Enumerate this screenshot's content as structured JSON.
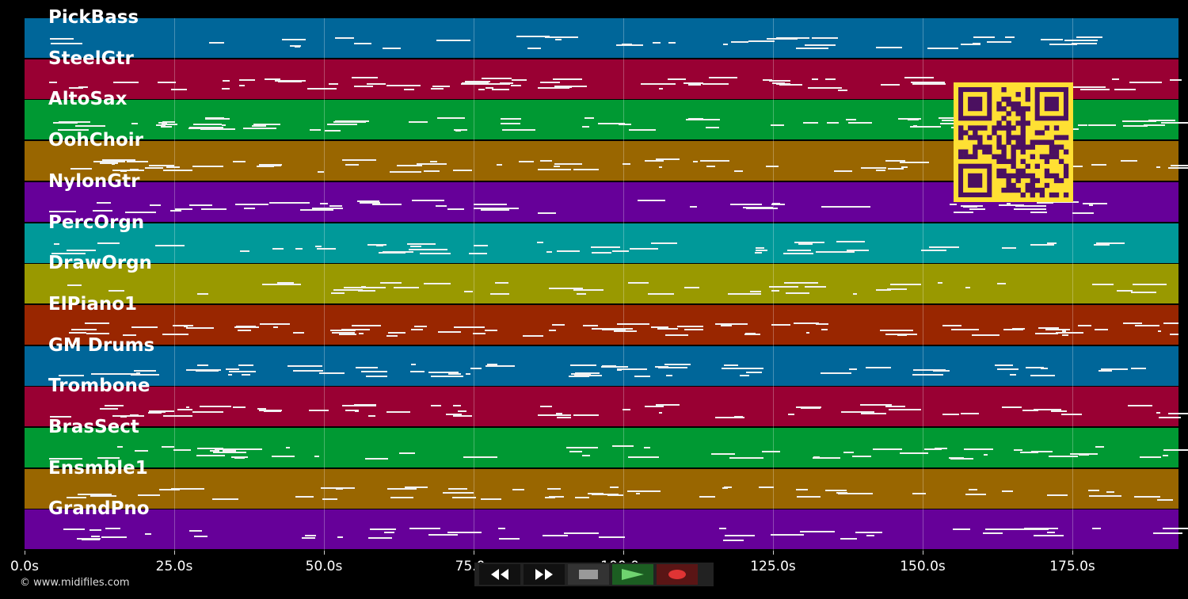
{
  "tracks": [
    {
      "name": "PickBass",
      "color": "#006699"
    },
    {
      "name": "SteelGtr",
      "color": "#990033"
    },
    {
      "name": "AltoSax",
      "color": "#009933"
    },
    {
      "name": "OohChoir",
      "color": "#996600"
    },
    {
      "name": "NylonGtr",
      "color": "#660099"
    },
    {
      "name": "PercOrgn",
      "color": "#009999"
    },
    {
      "name": "DrawOrgn",
      "color": "#999900"
    },
    {
      "name": "ElPiano1",
      "color": "#992600"
    },
    {
      "name": "GM Drums",
      "color": "#006699"
    },
    {
      "name": "Trombone",
      "color": "#990033"
    },
    {
      "name": "BrasSect",
      "color": "#009933"
    },
    {
      "name": "Ensmble1",
      "color": "#996600"
    },
    {
      "name": "GrandPno",
      "color": "#660099"
    }
  ],
  "timeline": {
    "ticks": [
      "0.0s",
      "25.0s",
      "50.0s",
      "75.0s",
      "100.0s",
      "125.0s",
      "150.0s",
      "175.0s"
    ]
  },
  "transport": {
    "buttons": [
      {
        "name": "rewind-button",
        "icon": "rewind-icon"
      },
      {
        "name": "fast-forward-button",
        "icon": "fast-forward-icon"
      },
      {
        "name": "stop-button",
        "icon": "stop-icon"
      },
      {
        "name": "play-button",
        "icon": "play-icon"
      },
      {
        "name": "record-button",
        "icon": "record-icon"
      }
    ]
  },
  "footer": {
    "copyright": "© www.midifiles.com"
  },
  "qr": {
    "icon": "qr-code-icon",
    "color": "#ffe033",
    "dark": "#4b1060"
  }
}
